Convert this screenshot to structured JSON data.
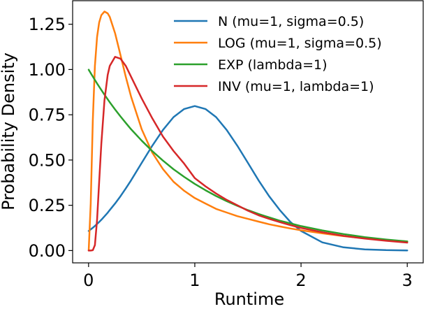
{
  "chart_data": {
    "type": "line",
    "title": "",
    "xlabel": "Runtime",
    "ylabel": "Probability Density",
    "xlim": [
      -0.15,
      3.15
    ],
    "ylim": [
      -0.068,
      1.38
    ],
    "xticks": [
      0,
      1,
      2,
      3
    ],
    "yticks": [
      0.0,
      0.25,
      0.5,
      0.75,
      1.0,
      1.25
    ],
    "xtick_labels": [
      "0",
      "1",
      "2",
      "3"
    ],
    "ytick_labels": [
      "0.00",
      "0.25",
      "0.50",
      "0.75",
      "1.00",
      "1.25"
    ],
    "grid": false,
    "legend_position": "top-right",
    "x": [
      0.001,
      0.02,
      0.04,
      0.06,
      0.08,
      0.1,
      0.12,
      0.15,
      0.18,
      0.2,
      0.25,
      0.3,
      0.35,
      0.4,
      0.5,
      0.6,
      0.7,
      0.8,
      0.9,
      1.0,
      1.1,
      1.2,
      1.3,
      1.4,
      1.5,
      1.6,
      1.7,
      1.8,
      1.9,
      2.0,
      2.2,
      2.4,
      2.6,
      2.8,
      3.0
    ],
    "series": [
      {
        "name": "N (mu=1, sigma=0.5)",
        "color": "#1f77b4",
        "values": [
          0.108,
          0.117,
          0.126,
          0.136,
          0.147,
          0.158,
          0.17,
          0.189,
          0.209,
          0.224,
          0.26,
          0.3,
          0.343,
          0.388,
          0.484,
          0.579,
          0.666,
          0.737,
          0.782,
          0.798,
          0.782,
          0.737,
          0.666,
          0.579,
          0.484,
          0.388,
          0.3,
          0.224,
          0.158,
          0.108,
          0.045,
          0.0177,
          0.0064,
          0.0022,
          0.0007
        ]
      },
      {
        "name": "LOG (mu=1, sigma=0.5)",
        "color": "#ff7f0e",
        "values": [
          0.0,
          0.26,
          0.72,
          1.02,
          1.18,
          1.26,
          1.3,
          1.32,
          1.31,
          1.29,
          1.2,
          1.08,
          0.96,
          0.85,
          0.67,
          0.54,
          0.45,
          0.38,
          0.33,
          0.29,
          0.26,
          0.23,
          0.21,
          0.19,
          0.175,
          0.16,
          0.145,
          0.133,
          0.122,
          0.112,
          0.095,
          0.08,
          0.068,
          0.058,
          0.05
        ]
      },
      {
        "name": "EXP (lambda=1)",
        "color": "#2ca02c",
        "values": [
          0.999,
          0.98,
          0.961,
          0.942,
          0.923,
          0.905,
          0.887,
          0.861,
          0.835,
          0.819,
          0.779,
          0.741,
          0.705,
          0.67,
          0.607,
          0.549,
          0.497,
          0.449,
          0.407,
          0.368,
          0.333,
          0.301,
          0.273,
          0.247,
          0.223,
          0.202,
          0.183,
          0.165,
          0.15,
          0.135,
          0.111,
          0.091,
          0.074,
          0.061,
          0.05
        ]
      },
      {
        "name": "INV (mu=1, lambda=1)",
        "color": "#d62728",
        "values": [
          0.0,
          0.0,
          0.002,
          0.03,
          0.17,
          0.38,
          0.59,
          0.83,
          0.97,
          1.02,
          1.07,
          1.06,
          1.02,
          0.96,
          0.84,
          0.73,
          0.63,
          0.55,
          0.48,
          0.4,
          0.355,
          0.315,
          0.28,
          0.25,
          0.22,
          0.195,
          0.175,
          0.157,
          0.14,
          0.125,
          0.101,
          0.081,
          0.066,
          0.054,
          0.044
        ]
      }
    ]
  }
}
